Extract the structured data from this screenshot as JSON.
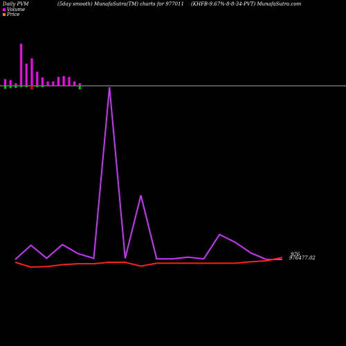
{
  "header": {
    "left": "Daily PVM",
    "middle": "(5day smooth) MunafaSutra(TM) charts for 977011",
    "right": "(KHFB-9.67%-8-8-34-PVT) MunafaSutra.com"
  },
  "legend": [
    {
      "label": "Volume",
      "color": "#ff00ff"
    },
    {
      "label": "Price",
      "color": "#ff8000"
    }
  ],
  "colors": {
    "volume_up": "#ff00ff",
    "volume_down": "#ff0000",
    "volume_green": "#00cc00",
    "pvm_line": "#cc33ff",
    "price_line": "#ff2020",
    "baseline": "#aaaaaa",
    "background": "#000000"
  },
  "chart_data": [
    {
      "type": "bar",
      "name": "volume",
      "values": [
        1.5,
        1.3,
        0.6,
        9.5,
        5.0,
        6.2,
        3.2,
        1.9,
        1.0,
        1.0,
        2.0,
        2.2,
        2.0,
        1.0,
        0.6
      ],
      "down_values": [
        0.7,
        0.5,
        0.5,
        0.3,
        0.3,
        0.8,
        0.3,
        0.3,
        0.0,
        0.0,
        0.0,
        0.0,
        0.0,
        0.0,
        0.8
      ],
      "down_colors": [
        "green",
        "green",
        "green",
        "green",
        "green",
        "red",
        "green",
        "green",
        "none",
        "none",
        "none",
        "none",
        "none",
        "none",
        "green"
      ],
      "ylim": [
        0,
        10
      ]
    },
    {
      "type": "line",
      "name": "pvm",
      "values": [
        0,
        24,
        2,
        25,
        10,
        2,
        290,
        2,
        108,
        1,
        1,
        4,
        1,
        42,
        29,
        11,
        0,
        0
      ],
      "ylim": [
        0,
        290
      ]
    },
    {
      "type": "line",
      "name": "price",
      "values": [
        977.0,
        976.9,
        976.91,
        976.95,
        976.97,
        976.97,
        977.0,
        977.0,
        976.92,
        976.98,
        976.98,
        976.98,
        976.98,
        976.98,
        976.98,
        977.01,
        977.03,
        977.1
      ],
      "ylim": [
        976.5,
        977.5
      ],
      "last_label": "976477.02"
    }
  ]
}
